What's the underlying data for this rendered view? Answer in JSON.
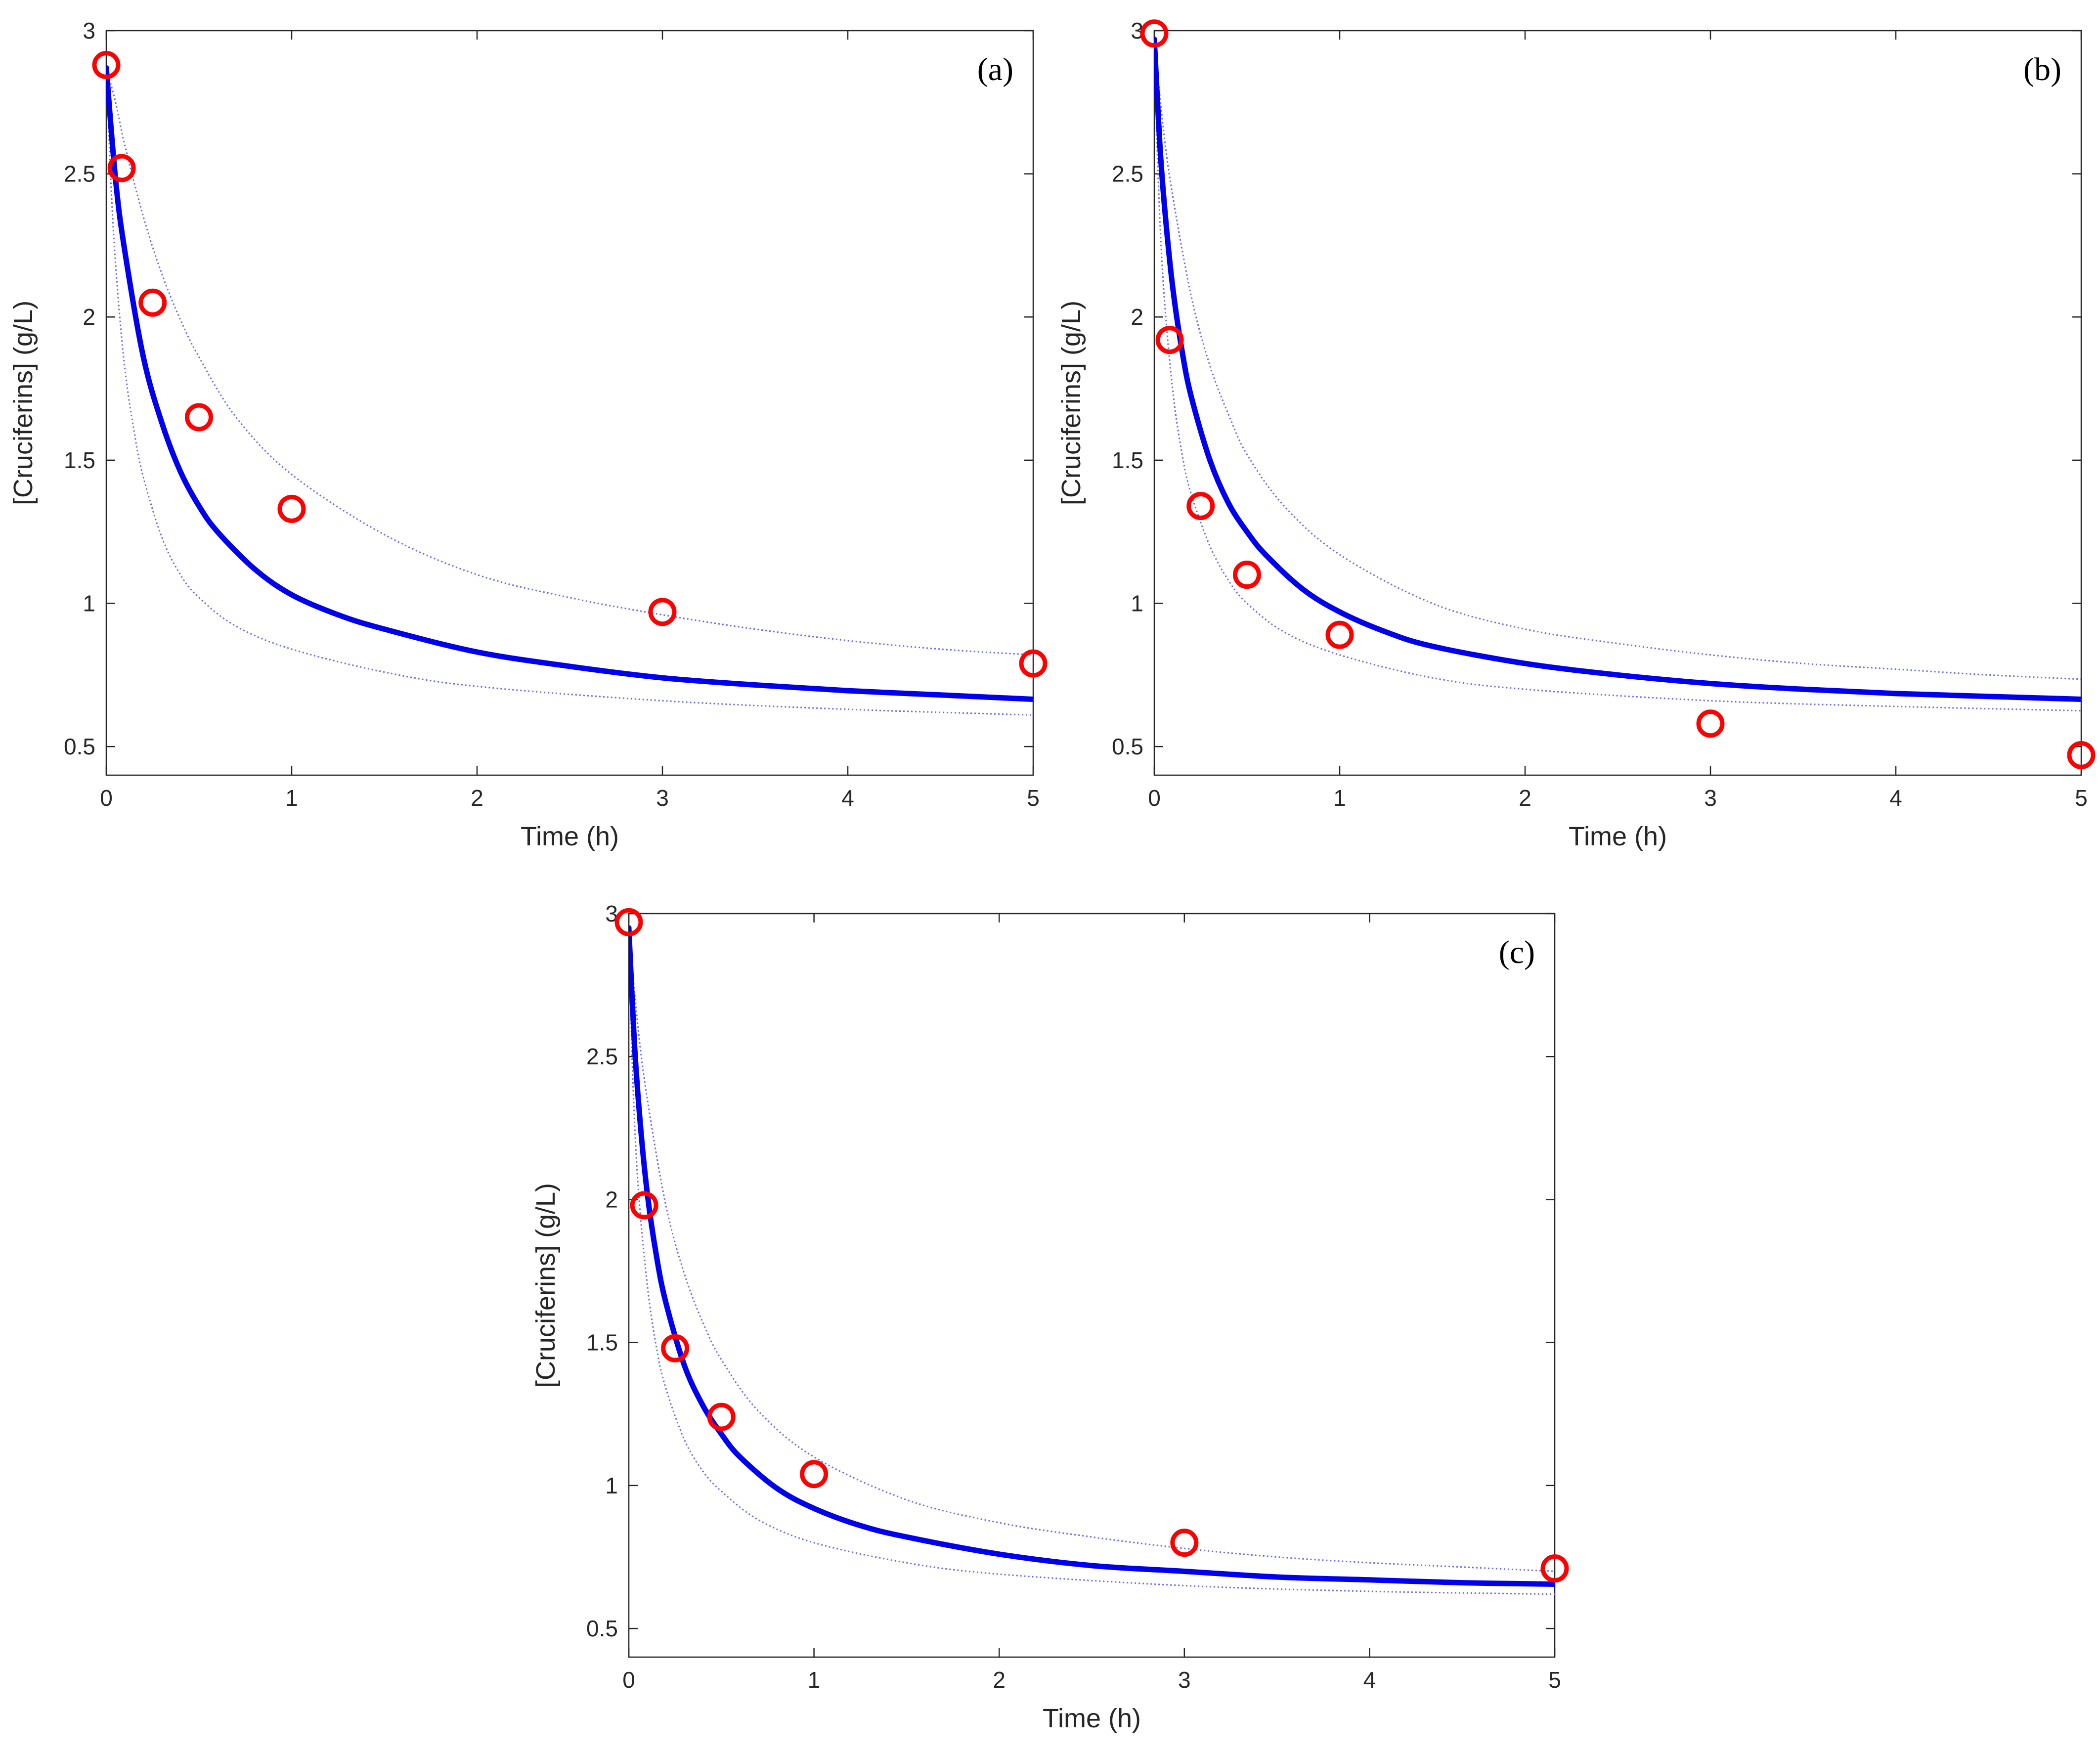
{
  "colors": {
    "fit_line": "#0000ee",
    "bound_line": "#6666ff",
    "marker": "#ff0000",
    "axis": "#262626"
  },
  "chart_data": [
    {
      "type": "line",
      "panel_label": "(a)",
      "xlabel": "Time (h)",
      "ylabel": "[Cruciferins] (g/L)",
      "xlim": [
        0,
        5
      ],
      "ylim": [
        0.4,
        3
      ],
      "xticks": [
        0,
        1,
        2,
        3,
        4,
        5
      ],
      "yticks": [
        0.5,
        1,
        1.5,
        2,
        2.5,
        3
      ],
      "ytick_labels": [
        "0.5",
        "1",
        "1.5",
        "2",
        "2.5",
        "3"
      ],
      "grid": false,
      "legend": "none",
      "observed": {
        "x": [
          0,
          0.083,
          0.25,
          0.5,
          1,
          3,
          5
        ],
        "y": [
          2.88,
          2.52,
          2.05,
          1.65,
          1.33,
          0.97,
          0.79
        ]
      },
      "fit": {
        "x": [
          0,
          0.05,
          0.1,
          0.2,
          0.3,
          0.4,
          0.5,
          0.6,
          0.8,
          1,
          1.25,
          1.5,
          2,
          2.5,
          3,
          3.5,
          4,
          4.5,
          5
        ],
        "y": [
          2.87,
          2.48,
          2.23,
          1.86,
          1.63,
          1.46,
          1.34,
          1.25,
          1.12,
          1.03,
          0.96,
          0.91,
          0.83,
          0.78,
          0.74,
          0.715,
          0.695,
          0.68,
          0.665
        ]
      },
      "upper_bound": {
        "x": [
          0,
          0.05,
          0.1,
          0.2,
          0.3,
          0.4,
          0.5,
          0.7,
          1,
          1.5,
          2,
          2.5,
          3,
          3.5,
          4,
          4.5,
          5
        ],
        "y": [
          2.87,
          2.75,
          2.6,
          2.35,
          2.15,
          1.99,
          1.86,
          1.65,
          1.45,
          1.24,
          1.1,
          1.02,
          0.96,
          0.91,
          0.87,
          0.84,
          0.82
        ]
      },
      "lower_bound": {
        "x": [
          0,
          0.03,
          0.06,
          0.1,
          0.15,
          0.2,
          0.3,
          0.4,
          0.5,
          0.7,
          1,
          1.5,
          2,
          3,
          4,
          5
        ],
        "y": [
          2.87,
          2.4,
          2.1,
          1.82,
          1.6,
          1.44,
          1.23,
          1.1,
          1.02,
          0.92,
          0.84,
          0.76,
          0.71,
          0.66,
          0.63,
          0.61
        ]
      }
    },
    {
      "type": "line",
      "panel_label": "(b)",
      "xlabel": "Time (h)",
      "ylabel": "[Cruciferins] (g/L)",
      "xlim": [
        0,
        5
      ],
      "ylim": [
        0.4,
        3
      ],
      "xticks": [
        0,
        1,
        2,
        3,
        4,
        5
      ],
      "yticks": [
        0.5,
        1,
        1.5,
        2,
        2.5,
        3
      ],
      "ytick_labels": [
        "0.5",
        "1",
        "1.5",
        "2",
        "2.5",
        "3"
      ],
      "grid": false,
      "legend": "none",
      "observed": {
        "x": [
          0,
          0.083,
          0.25,
          0.5,
          1,
          3,
          5
        ],
        "y": [
          2.99,
          1.92,
          1.34,
          1.1,
          0.89,
          0.58,
          0.47
        ]
      },
      "fit": {
        "x": [
          0,
          0.03,
          0.06,
          0.1,
          0.15,
          0.2,
          0.3,
          0.4,
          0.5,
          0.6,
          0.8,
          1,
          1.25,
          1.5,
          2,
          2.5,
          3,
          3.5,
          4,
          4.5,
          5
        ],
        "y": [
          2.97,
          2.6,
          2.35,
          2.1,
          1.88,
          1.72,
          1.5,
          1.35,
          1.25,
          1.17,
          1.05,
          0.97,
          0.9,
          0.85,
          0.79,
          0.75,
          0.72,
          0.7,
          0.685,
          0.675,
          0.665
        ]
      },
      "upper_bound": {
        "x": [
          0,
          0.05,
          0.1,
          0.2,
          0.3,
          0.4,
          0.5,
          0.7,
          1,
          1.5,
          2,
          2.5,
          3,
          3.5,
          4,
          4.5,
          5
        ],
        "y": [
          2.97,
          2.65,
          2.42,
          2.07,
          1.83,
          1.66,
          1.52,
          1.34,
          1.17,
          1.0,
          0.91,
          0.86,
          0.82,
          0.79,
          0.77,
          0.75,
          0.735
        ]
      },
      "lower_bound": {
        "x": [
          0,
          0.02,
          0.05,
          0.1,
          0.15,
          0.2,
          0.3,
          0.4,
          0.5,
          0.7,
          1,
          1.5,
          2,
          3,
          4,
          5
        ],
        "y": [
          2.97,
          2.5,
          2.1,
          1.74,
          1.52,
          1.38,
          1.2,
          1.08,
          1.0,
          0.9,
          0.82,
          0.74,
          0.7,
          0.66,
          0.64,
          0.625
        ]
      }
    },
    {
      "type": "line",
      "panel_label": "(c)",
      "xlabel": "Time (h)",
      "ylabel": "[Cruciferins] (g/L)",
      "xlim": [
        0,
        5
      ],
      "ylim": [
        0.4,
        3
      ],
      "xticks": [
        0,
        1,
        2,
        3,
        4,
        5
      ],
      "yticks": [
        0.5,
        1,
        1.5,
        2,
        2.5,
        3
      ],
      "ytick_labels": [
        "0.5",
        "1",
        "1.5",
        "2",
        "2.5",
        "3"
      ],
      "grid": false,
      "legend": "none",
      "observed": {
        "x": [
          0,
          0.083,
          0.25,
          0.5,
          1,
          3,
          5
        ],
        "y": [
          2.97,
          1.98,
          1.48,
          1.24,
          1.04,
          0.8,
          0.71
        ]
      },
      "fit": {
        "x": [
          0,
          0.03,
          0.06,
          0.1,
          0.15,
          0.2,
          0.3,
          0.4,
          0.5,
          0.6,
          0.8,
          1,
          1.25,
          1.5,
          2,
          2.5,
          3,
          3.5,
          4,
          4.5,
          5
        ],
        "y": [
          2.95,
          2.55,
          2.28,
          2.02,
          1.8,
          1.64,
          1.42,
          1.28,
          1.18,
          1.1,
          0.99,
          0.92,
          0.86,
          0.82,
          0.76,
          0.72,
          0.7,
          0.68,
          0.67,
          0.66,
          0.655
        ]
      },
      "upper_bound": {
        "x": [
          0,
          0.05,
          0.1,
          0.2,
          0.3,
          0.4,
          0.5,
          0.7,
          1,
          1.5,
          2,
          2.5,
          3,
          3.5,
          4,
          4.5,
          5
        ],
        "y": [
          2.95,
          2.6,
          2.35,
          1.98,
          1.74,
          1.57,
          1.44,
          1.26,
          1.1,
          0.95,
          0.87,
          0.82,
          0.78,
          0.75,
          0.73,
          0.715,
          0.7
        ]
      },
      "lower_bound": {
        "x": [
          0,
          0.02,
          0.05,
          0.1,
          0.15,
          0.2,
          0.3,
          0.4,
          0.5,
          0.7,
          1,
          1.5,
          2,
          3,
          4,
          5
        ],
        "y": [
          2.95,
          2.45,
          2.05,
          1.7,
          1.48,
          1.34,
          1.16,
          1.05,
          0.98,
          0.88,
          0.8,
          0.73,
          0.69,
          0.65,
          0.63,
          0.62
        ]
      }
    }
  ]
}
